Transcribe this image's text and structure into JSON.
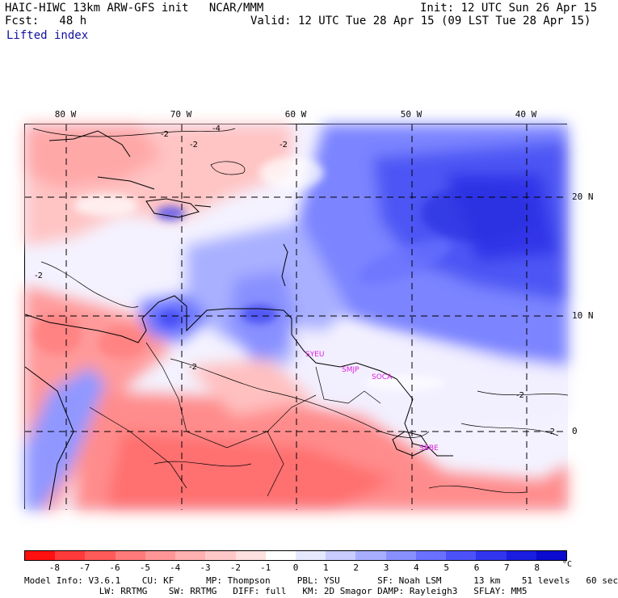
{
  "header": {
    "line1_left": "HAIC-HIWC 13km ARW-GFS init   NCAR/MMM",
    "line1_right": "Init: 12 UTC Sun 26 Apr 15",
    "line2_left": "Fcst:   48 h",
    "line2_right": "Valid: 12 UTC Tue 28 Apr 15 (09 LST Tue 28 Apr 15)",
    "field": "Lifted index"
  },
  "map": {
    "lon_labels": [
      "80 W",
      "70 W",
      "60 W",
      "50 W",
      "40 W"
    ],
    "lat_labels": [
      "20 N",
      "10 N",
      "0"
    ],
    "contour_labels": [
      "-2",
      "-4",
      "-2",
      "-2",
      "-2",
      "-2",
      "-2",
      "-2"
    ],
    "stations": [
      "SYEU",
      "SMJP",
      "SOCA",
      "SBBE"
    ]
  },
  "colorbar": {
    "ticks": [
      "-8",
      "-7",
      "-6",
      "-5",
      "-4",
      "-3",
      "-2",
      "-1",
      "0",
      "1",
      "2",
      "3",
      "4",
      "5",
      "6",
      "7",
      "8"
    ],
    "unit": "°C",
    "colors": [
      "#ff1010",
      "#ff3a3a",
      "#ff5a5a",
      "#ff7a7a",
      "#ff9696",
      "#ffb0b0",
      "#ffc8c8",
      "#ffe0e0",
      "#ffffff",
      "#e6e8ff",
      "#c8ccff",
      "#a8aeff",
      "#8890ff",
      "#6a70ff",
      "#4c52f8",
      "#3035ee",
      "#1a1ee0",
      "#0a0ad0"
    ]
  },
  "model_info": {
    "line1": "Model Info: V3.6.1    CU: KF      MP: Thompson     PBL: YSU       SF: Noah LSM      13 km    51 levels   60 sec",
    "line2": "              LW: RRTMG    SW: RRTMG   DIFF: full   KM: 2D Smagor DAMP: Rayleigh3   SFLAY: MM5"
  }
}
